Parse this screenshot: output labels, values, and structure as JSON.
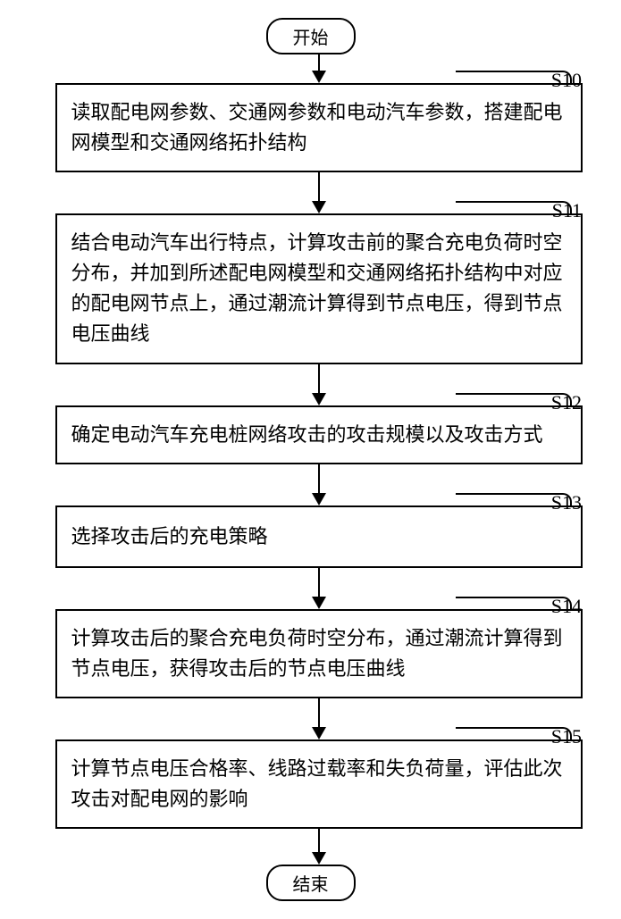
{
  "terminators": {
    "start": "开始",
    "end": "结束"
  },
  "steps": [
    {
      "id": "S10",
      "text": "读取配电网参数、交通网参数和电动汽车参数，搭建配电网模型和交通网络拓扑结构",
      "padClass": "step-pad-2",
      "labelRight": 34,
      "leaderLeft": 500,
      "leaderWidth": 128
    },
    {
      "id": "S11",
      "text": "结合电动汽车出行特点，计算攻击前的聚合充电负荷时空分布，并加到所述配电网模型和交通网络拓扑结构中对应的配电网节点上，通过潮流计算得到节点电压，得到节点电压曲线",
      "padClass": "step-pad-3",
      "labelRight": 34,
      "leaderLeft": 500,
      "leaderWidth": 128
    },
    {
      "id": "S12",
      "text": "确定电动汽车充电桩网络攻击的攻击规模以及攻击方式",
      "padClass": "step-pad-2",
      "labelRight": 34,
      "leaderLeft": 500,
      "leaderWidth": 128
    },
    {
      "id": "S13",
      "text": "选择攻击后的充电策略",
      "padClass": "step-pad-1",
      "labelRight": 34,
      "leaderLeft": 500,
      "leaderWidth": 128
    },
    {
      "id": "S14",
      "text": "计算攻击后的聚合充电负荷时空分布，通过潮流计算得到节点电压，获得攻击后的节点电压曲线",
      "padClass": "step-pad-2",
      "labelRight": 34,
      "leaderLeft": 500,
      "leaderWidth": 128
    },
    {
      "id": "S15",
      "text": "计算节点电压合格率、线路过载率和失负荷量，评估此次攻击对配电网的影响",
      "padClass": "step-pad-2",
      "labelRight": 34,
      "leaderLeft": 500,
      "leaderWidth": 128
    }
  ],
  "style": {
    "bg": "#ffffff",
    "border_color": "#000000",
    "font_size_step": 22,
    "font_size_label": 22,
    "font_size_term": 20,
    "step_width": 590,
    "arrow_len_first": 18,
    "arrow_len_between": 32,
    "arrow_len_last": 26
  }
}
